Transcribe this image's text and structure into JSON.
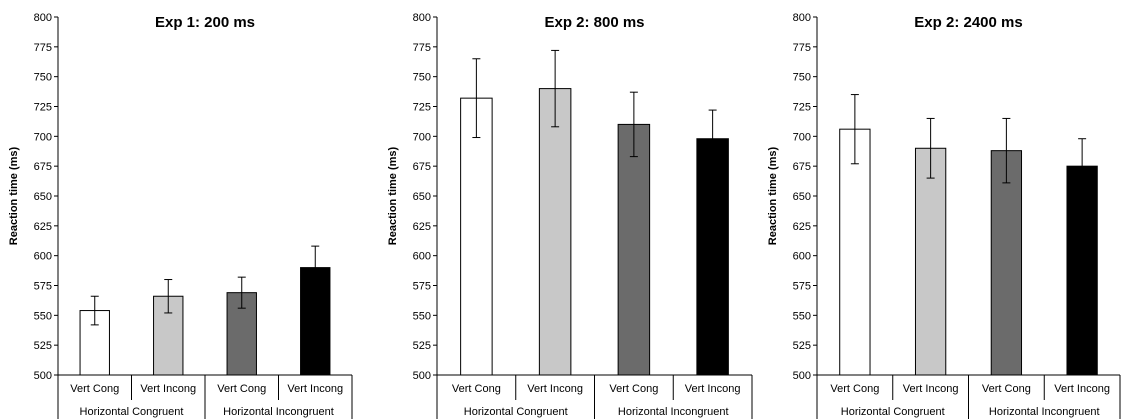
{
  "chart_data": [
    {
      "type": "bar",
      "title": "Exp 1: 200 ms",
      "ylabel": "Reaction time (ms)",
      "ylim": [
        500,
        800
      ],
      "yticks": [
        500,
        525,
        550,
        575,
        600,
        625,
        650,
        675,
        700,
        725,
        750,
        775,
        800
      ],
      "categories": [
        "Vert Cong",
        "Vert Incong",
        "Vert Cong",
        "Vert Incong"
      ],
      "groups": [
        {
          "label": "Horizontal Congruent",
          "categories": [
            "Vert Cong",
            "Vert Incong"
          ]
        },
        {
          "label": "Horizontal Incongruent",
          "categories": [
            "Vert Cong",
            "Vert Incong"
          ]
        }
      ],
      "values": [
        554,
        566,
        569,
        590
      ],
      "error_bars": [
        12,
        14,
        13,
        18
      ],
      "colors": [
        "#ffffff",
        "#c8c8c8",
        "#6b6b6b",
        "#000000"
      ],
      "grid": false
    },
    {
      "type": "bar",
      "title": "Exp 2: 800 ms",
      "ylabel": "Reaction time (ms)",
      "ylim": [
        500,
        800
      ],
      "yticks": [
        500,
        525,
        550,
        575,
        600,
        625,
        650,
        675,
        700,
        725,
        750,
        775,
        800
      ],
      "categories": [
        "Vert Cong",
        "Vert Incong",
        "Vert Cong",
        "Vert Incong"
      ],
      "groups": [
        {
          "label": "Horizontal Congruent",
          "categories": [
            "Vert Cong",
            "Vert Incong"
          ]
        },
        {
          "label": "Horizontal Incongruent",
          "categories": [
            "Vert Cong",
            "Vert Incong"
          ]
        }
      ],
      "values": [
        732,
        740,
        710,
        698
      ],
      "error_bars": [
        33,
        32,
        27,
        24
      ],
      "colors": [
        "#ffffff",
        "#c8c8c8",
        "#6b6b6b",
        "#000000"
      ],
      "grid": false
    },
    {
      "type": "bar",
      "title": "Exp 2: 2400 ms",
      "ylabel": "Reaction time (ms)",
      "ylim": [
        500,
        800
      ],
      "yticks": [
        500,
        525,
        550,
        575,
        600,
        625,
        650,
        675,
        700,
        725,
        750,
        775,
        800
      ],
      "categories": [
        "Vert Cong",
        "Vert Incong",
        "Vert Cong",
        "Vert Incong"
      ],
      "groups": [
        {
          "label": "Horizontal Congruent",
          "categories": [
            "Vert Cong",
            "Vert Incong"
          ]
        },
        {
          "label": "Horizontal Incongruent",
          "categories": [
            "Vert Cong",
            "Vert Incong"
          ]
        }
      ],
      "values": [
        706,
        690,
        688,
        675
      ],
      "error_bars": [
        29,
        25,
        27,
        23
      ],
      "colors": [
        "#ffffff",
        "#c8c8c8",
        "#6b6b6b",
        "#000000"
      ],
      "grid": false
    }
  ]
}
